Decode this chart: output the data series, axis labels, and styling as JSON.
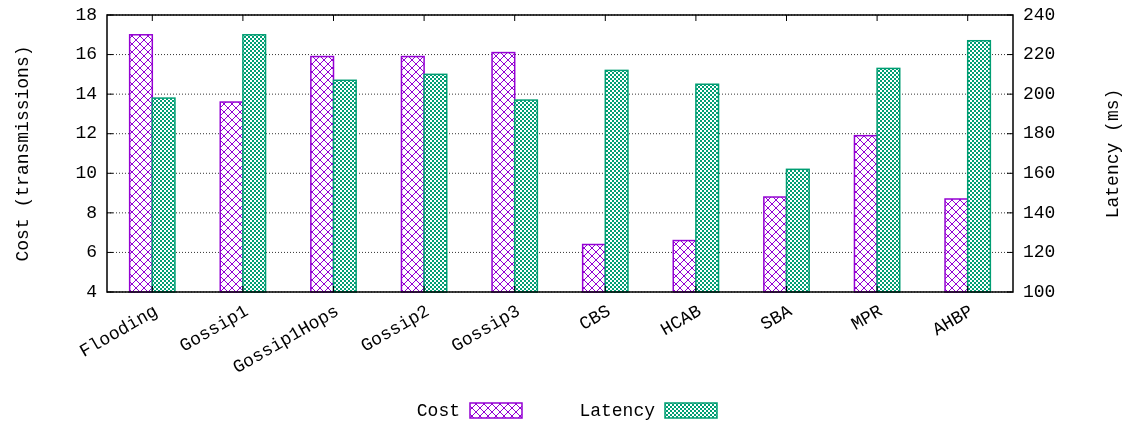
{
  "chart_data": {
    "type": "bar",
    "xlabel": null,
    "ylabel": "Cost (transmissions)",
    "y2label": "Latency (ms)",
    "categories": [
      "Flooding",
      "Gossip1",
      "Gossip1Hops",
      "Gossip2",
      "Gossip3",
      "CBS",
      "HCAB",
      "SBA",
      "MPR",
      "AHBP"
    ],
    "series": [
      {
        "name": "Cost",
        "color": "#9400d3",
        "values": [
          17.0,
          13.6,
          15.9,
          15.9,
          16.1,
          6.4,
          6.6,
          8.8,
          11.9,
          8.7
        ]
      },
      {
        "name": "Latency",
        "color": "#009e73",
        "axis": "y2",
        "values": [
          198,
          230,
          207,
          210,
          197,
          212,
          205,
          162,
          213,
          227
        ]
      }
    ],
    "ylim": [
      4,
      18
    ],
    "yticks": [
      4,
      6,
      8,
      10,
      12,
      14,
      16,
      18
    ],
    "y2lim": [
      100,
      240
    ],
    "y2ticks": [
      100,
      120,
      140,
      160,
      180,
      200,
      220,
      240
    ],
    "grid": "y",
    "legend": "bottom"
  }
}
